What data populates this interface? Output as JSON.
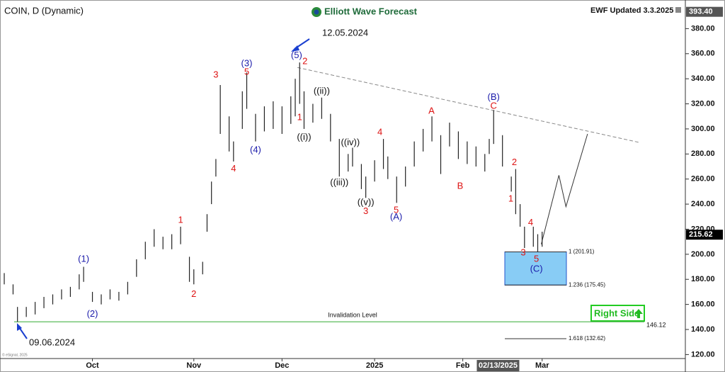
{
  "chart_data": {
    "type": "ohlc",
    "title": "COIN, D (Dynamic)",
    "brand": "Elliott Wave Forecast",
    "updated": "EWF Updated 3.3.2025",
    "copyright": "© eSignal, 2025",
    "color": "#222222",
    "x": [
      -3,
      -1,
      0,
      2,
      4,
      6,
      8,
      10,
      12,
      14,
      15,
      17,
      19,
      21,
      23,
      25,
      27,
      29,
      31,
      33,
      35,
      37,
      39,
      40,
      42,
      43,
      44,
      45,
      46,
      48,
      49,
      51,
      52,
      54,
      56,
      58,
      60,
      62,
      63,
      64,
      65,
      67,
      69,
      71,
      73,
      75,
      76,
      78,
      79,
      81,
      83,
      84,
      86,
      88,
      90,
      92,
      94,
      96,
      98,
      100,
      102,
      104,
      106,
      107,
      108,
      110,
      112,
      113,
      114,
      115,
      117,
      118,
      119
    ],
    "high": [
      185,
      176,
      158,
      158,
      162,
      166,
      168,
      172,
      174,
      184,
      190,
      170,
      168,
      172,
      170,
      178,
      196,
      210,
      220,
      214,
      216,
      222,
      198,
      188,
      194,
      232,
      258,
      276,
      335,
      310,
      290,
      330,
      345,
      312,
      318,
      322,
      318,
      326,
      340,
      353,
      330,
      320,
      325,
      312,
      292,
      280,
      285,
      272,
      262,
      275,
      292,
      278,
      262,
      270,
      290,
      300,
      310,
      295,
      305,
      298,
      290,
      286,
      280,
      292,
      315,
      295,
      262,
      268,
      240,
      222,
      222,
      216,
      218
    ],
    "low": [
      176,
      168,
      146,
      150,
      152,
      157,
      160,
      164,
      166,
      172,
      178,
      162,
      160,
      164,
      163,
      168,
      182,
      196,
      206,
      204,
      204,
      208,
      178,
      176,
      184,
      218,
      240,
      262,
      296,
      282,
      274,
      300,
      316,
      290,
      298,
      300,
      296,
      304,
      310,
      320,
      300,
      305,
      308,
      290,
      262,
      266,
      270,
      252,
      245,
      258,
      268,
      260,
      241,
      254,
      270,
      282,
      290,
      264,
      286,
      276,
      272,
      270,
      266,
      280,
      288,
      270,
      250,
      232,
      222,
      205,
      206,
      202,
      206
    ],
    "xlim": [
      -3,
      151
    ],
    "ylim": [
      114,
      400
    ],
    "xticks": [
      {
        "value": 17,
        "label": "Oct"
      },
      {
        "value": 40,
        "label": "Nov"
      },
      {
        "value": 60,
        "label": "Dec"
      },
      {
        "value": 81,
        "label": "2025"
      },
      {
        "value": 101,
        "label": "Feb"
      },
      {
        "value": 119,
        "label": "Mar"
      }
    ],
    "cursor_date": {
      "value": 109,
      "label": "02/13/2025"
    },
    "yticks": [
      {
        "value": 120,
        "label": "120.00"
      },
      {
        "value": 140,
        "label": "140.00"
      },
      {
        "value": 160,
        "label": "160.00"
      },
      {
        "value": 180,
        "label": "180.00"
      },
      {
        "value": 200,
        "label": "200.00"
      },
      {
        "value": 220,
        "label": "220.00"
      },
      {
        "value": 240,
        "label": "240.00"
      },
      {
        "value": 260,
        "label": "260.00"
      },
      {
        "value": 280,
        "label": "280.00"
      },
      {
        "value": 300,
        "label": "300.00"
      },
      {
        "value": 320,
        "label": "320.00"
      },
      {
        "value": 340,
        "label": "340.00"
      },
      {
        "value": 360,
        "label": "360.00"
      },
      {
        "value": 380,
        "label": "380.00"
      }
    ],
    "price_tags": [
      {
        "value": 393.4,
        "label": "393.40",
        "color": "#555555"
      },
      {
        "value": 215.62,
        "label": "215.62",
        "color": "#000000"
      }
    ],
    "trendline": {
      "x": [
        63.5,
        141.3
      ],
      "values": [
        349,
        289
      ],
      "color": "#888888"
    },
    "projection": {
      "x": [
        118.8,
        122.8,
        124.4,
        129.3
      ],
      "values": [
        208,
        263,
        238,
        296
      ],
      "color": "#333333"
    },
    "invalidation": {
      "label": "Invalidation Level",
      "value": 146.12,
      "color": "#33aa33"
    },
    "fib_levels": [
      {
        "value": 201.91,
        "label": "1 (201.91)"
      },
      {
        "value": 175.45,
        "label": "1.236 (175.45)"
      },
      {
        "value": 132.62,
        "label": "1.618 (132.62)"
      }
    ],
    "box_color": "#88ccf5",
    "wave_labels": [
      {
        "text": "(1)",
        "color": "#1a1aaa"
      },
      {
        "text": "(2)",
        "color": "#1a1aaa"
      },
      {
        "text": "1",
        "color": "#dd1111"
      },
      {
        "text": "2",
        "color": "#dd1111"
      },
      {
        "text": "3",
        "color": "#dd1111"
      },
      {
        "text": "4",
        "color": "#dd1111"
      },
      {
        "text": "(3)",
        "color": "#1a1aaa"
      },
      {
        "text": "5",
        "color": "#dd1111"
      },
      {
        "text": "(4)",
        "color": "#1a1aaa"
      },
      {
        "text": "(5)",
        "color": "#1a1aaa"
      },
      {
        "text": "2",
        "color": "#dd1111"
      },
      {
        "text": "1",
        "color": "#dd1111"
      },
      {
        "text": "((i))",
        "color": "#111111"
      },
      {
        "text": "((ii))",
        "color": "#111111"
      },
      {
        "text": "((iv))",
        "color": "#111111"
      },
      {
        "text": "((iii))",
        "color": "#111111"
      },
      {
        "text": "((v))",
        "color": "#111111"
      },
      {
        "text": "3",
        "color": "#dd1111"
      },
      {
        "text": "4",
        "color": "#dd1111"
      },
      {
        "text": "5",
        "color": "#dd1111"
      },
      {
        "text": "(A)",
        "color": "#1a1aaa"
      },
      {
        "text": "A",
        "color": "#dd1111"
      },
      {
        "text": "B",
        "color": "#dd1111"
      },
      {
        "text": "C",
        "color": "#dd1111"
      },
      {
        "text": "(B)",
        "color": "#1a1aaa"
      },
      {
        "text": "2",
        "color": "#dd1111"
      },
      {
        "text": "1",
        "color": "#dd1111"
      },
      {
        "text": "4",
        "color": "#dd1111"
      },
      {
        "text": "3",
        "color": "#dd1111"
      },
      {
        "text": "5",
        "color": "#dd1111"
      },
      {
        "text": "(C)",
        "color": "#1a1aaa"
      }
    ],
    "date_callouts": [
      "12.05.2024",
      "09.06.2024"
    ],
    "button": "Right Side"
  }
}
